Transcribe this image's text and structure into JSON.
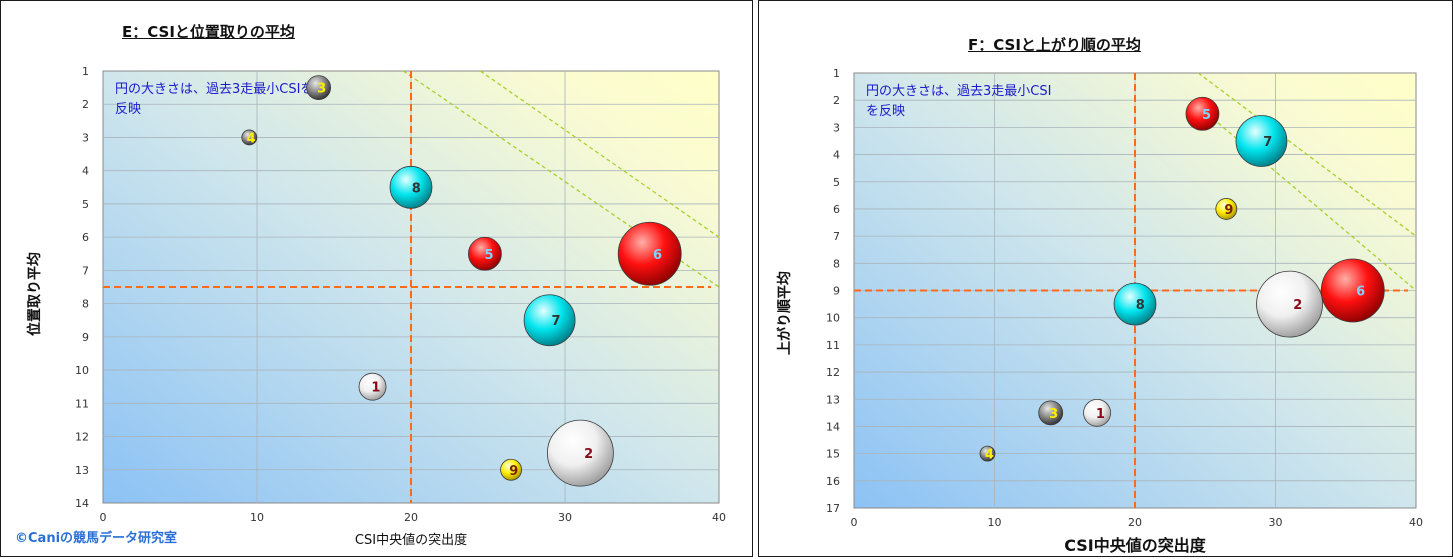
{
  "chart_data": [
    {
      "type": "scatter",
      "title": "E：CSIと位置取りの平均",
      "xlabel": "CSI中央値の突出度",
      "ylabel": "位置取り平均",
      "xlim": [
        0,
        40
      ],
      "ylim": [
        1,
        14
      ],
      "y_reversed": true,
      "xticks": [
        0,
        10,
        20,
        30,
        40
      ],
      "yticks": [
        1,
        2,
        3,
        4,
        5,
        6,
        7,
        8,
        9,
        10,
        11,
        12,
        13,
        14
      ],
      "grid": true,
      "annotation": "円の大きさは、過去3走最小CSIを反映",
      "reference_lines": {
        "x": 20,
        "y": 7.5
      },
      "points": [
        {
          "label": "1",
          "x": 17.5,
          "y": 10.5,
          "size": 9,
          "color": "white"
        },
        {
          "label": "2",
          "x": 31,
          "y": 12.5,
          "size": 22,
          "color": "white"
        },
        {
          "label": "3",
          "x": 14,
          "y": 1.5,
          "size": 8,
          "color": "gray"
        },
        {
          "label": "4",
          "x": 9.5,
          "y": 3,
          "size": 5,
          "color": "gray"
        },
        {
          "label": "5",
          "x": 24.8,
          "y": 6.5,
          "size": 11,
          "color": "red"
        },
        {
          "label": "6",
          "x": 35.5,
          "y": 6.5,
          "size": 21,
          "color": "red"
        },
        {
          "label": "7",
          "x": 29,
          "y": 8.5,
          "size": 17,
          "color": "cyan"
        },
        {
          "label": "8",
          "x": 20,
          "y": 4.5,
          "size": 14,
          "color": "cyan"
        },
        {
          "label": "9",
          "x": 26.5,
          "y": 13,
          "size": 7,
          "color": "yellow"
        }
      ],
      "trend_lines": [
        {
          "from": [
            19.5,
            1
          ],
          "to": [
            40,
            7.5
          ]
        },
        {
          "from": [
            24.5,
            1
          ],
          "to": [
            40,
            6
          ]
        }
      ]
    },
    {
      "type": "scatter",
      "title": "F：CSIと上がり順の平均",
      "xlabel": "CSI中央値の突出度",
      "ylabel": "上がり順平均",
      "xlim": [
        0,
        40
      ],
      "ylim": [
        1,
        17
      ],
      "y_reversed": true,
      "xticks": [
        0,
        10,
        20,
        30,
        40
      ],
      "yticks": [
        1,
        2,
        3,
        4,
        5,
        6,
        7,
        8,
        9,
        10,
        11,
        12,
        13,
        14,
        15,
        16,
        17
      ],
      "grid": true,
      "annotation": "円の大きさは、過去3走最小CSIを反映",
      "reference_lines": {
        "x": 20,
        "y": 9
      },
      "points": [
        {
          "label": "1",
          "x": 17.3,
          "y": 13.5,
          "size": 9,
          "color": "white"
        },
        {
          "label": "2",
          "x": 31,
          "y": 9.5,
          "size": 22,
          "color": "white"
        },
        {
          "label": "3",
          "x": 14,
          "y": 13.5,
          "size": 8,
          "color": "gray"
        },
        {
          "label": "4",
          "x": 9.5,
          "y": 15,
          "size": 5,
          "color": "gray"
        },
        {
          "label": "5",
          "x": 24.8,
          "y": 2.5,
          "size": 11,
          "color": "red"
        },
        {
          "label": "6",
          "x": 35.5,
          "y": 9,
          "size": 21,
          "color": "red"
        },
        {
          "label": "7",
          "x": 29,
          "y": 3.5,
          "size": 17,
          "color": "cyan"
        },
        {
          "label": "8",
          "x": 20,
          "y": 9.5,
          "size": 14,
          "color": "cyan"
        },
        {
          "label": "9",
          "x": 26.5,
          "y": 6,
          "size": 7,
          "color": "yellow"
        }
      ],
      "trend_lines": [
        {
          "from": [
            24,
            2
          ],
          "to": [
            40,
            9
          ]
        },
        {
          "from": [
            24.5,
            1
          ],
          "to": [
            40,
            7
          ]
        }
      ]
    }
  ],
  "annotation_lines": {
    "E": [
      "円の大きさは、過去3走最小CSIを",
      "反映"
    ],
    "F": [
      "円の大きさは、過去3走最小CSI",
      "を反映"
    ]
  },
  "copyright": "©Caniの競馬データ研究室",
  "colors": {
    "red": "#ff0000",
    "cyan": "#00e5ee",
    "white": "#f4f4f4",
    "gray": "#8a8a8a",
    "yellow": "#ffee00",
    "reference": "#ff6a1a",
    "trend": "#a6d02a",
    "annotation_text": "#1a1acc"
  }
}
